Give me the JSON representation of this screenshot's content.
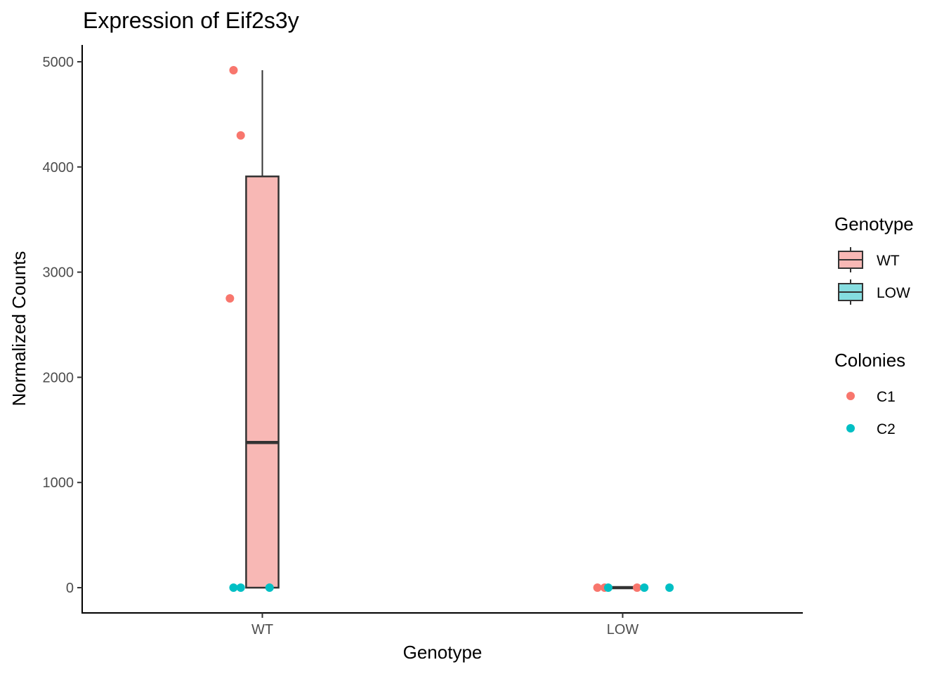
{
  "chart_data": {
    "type": "box",
    "title": "Expression of Eif2s3y",
    "xlabel": "Genotype",
    "ylabel": "Normalized Counts",
    "categories": [
      "WT",
      "LOW"
    ],
    "ylim": [
      -240,
      5160
    ],
    "yticks": [
      0,
      1000,
      2000,
      3000,
      4000,
      5000
    ],
    "boxes": [
      {
        "category": "WT",
        "min": 0,
        "q1": 0,
        "median": 1380,
        "q3": 3910,
        "max": 4920,
        "fill": "#F8B8B5"
      },
      {
        "category": "LOW",
        "min": 0,
        "q1": 0,
        "median": 0,
        "q3": 0,
        "max": 0,
        "fill": "#85DDE0"
      }
    ],
    "points": [
      {
        "category": "WT",
        "jitter": -0.08,
        "y": 4920,
        "colony": "C1"
      },
      {
        "category": "WT",
        "jitter": -0.06,
        "y": 4300,
        "colony": "C1"
      },
      {
        "category": "WT",
        "jitter": -0.09,
        "y": 2750,
        "colony": "C1"
      },
      {
        "category": "WT",
        "jitter": -0.08,
        "y": 0,
        "colony": "C2"
      },
      {
        "category": "WT",
        "jitter": -0.06,
        "y": 0,
        "colony": "C2"
      },
      {
        "category": "WT",
        "jitter": 0.02,
        "y": 0,
        "colony": "C2"
      },
      {
        "category": "LOW",
        "jitter": -0.07,
        "y": 0,
        "colony": "C1"
      },
      {
        "category": "LOW",
        "jitter": -0.05,
        "y": 0,
        "colony": "C1"
      },
      {
        "category": "LOW",
        "jitter": 0.04,
        "y": 0,
        "colony": "C1"
      },
      {
        "category": "LOW",
        "jitter": -0.04,
        "y": 0,
        "colony": "C2"
      },
      {
        "category": "LOW",
        "jitter": 0.06,
        "y": 0,
        "colony": "C2"
      },
      {
        "category": "LOW",
        "jitter": 0.13,
        "y": 0,
        "colony": "C2"
      }
    ],
    "legend": {
      "position": "right",
      "genotype_title": "Genotype",
      "genotype_items": [
        {
          "label": "WT",
          "color": "#F8B8B5"
        },
        {
          "label": "LOW",
          "color": "#85DDE0"
        }
      ],
      "colonies_title": "Colonies",
      "colonies_items": [
        {
          "label": "C1",
          "color": "#F8766D"
        },
        {
          "label": "C2",
          "color": "#00BFC4"
        }
      ]
    },
    "grid": false,
    "colors": {
      "C1": "#F8766D",
      "C2": "#00BFC4",
      "box_line": "#333333"
    }
  }
}
